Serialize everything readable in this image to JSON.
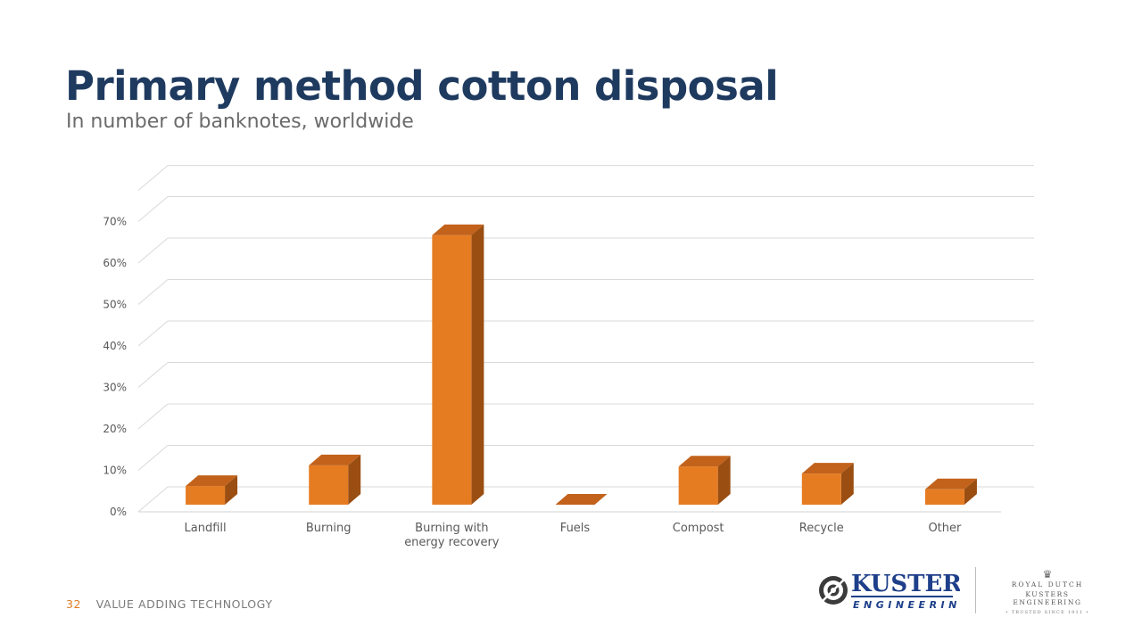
{
  "slide": {
    "title": "Primary method cotton disposal",
    "subtitle": "In number of banknotes, worldwide",
    "page_number": "32",
    "footer_text": "VALUE ADDING TECHNOLOGY"
  },
  "logo": {
    "name_top": "KUSTERS",
    "name_bottom": "ENGINEERING",
    "icon": "kusters-roll-icon",
    "badge_icon": "crown-icon",
    "badge_line1": "ROYAL DUTCH",
    "badge_line2": "KUSTERS ENGINEERING",
    "badge_line3": "• TRUSTED SINCE 1911 •",
    "brand_color": "#1e3f8a"
  },
  "chart_data": {
    "type": "bar",
    "style": "3d-column",
    "categories": [
      "Landfill",
      "Burning",
      "Burning with energy recovery",
      "Fuels",
      "Compost",
      "Recycle",
      "Other"
    ],
    "category_lines": [
      [
        "Landfill"
      ],
      [
        "Burning"
      ],
      [
        "Burning with",
        "energy recovery"
      ],
      [
        "Fuels"
      ],
      [
        "Compost"
      ],
      [
        "Recycle"
      ],
      [
        "Other"
      ]
    ],
    "values": [
      4.5,
      9.5,
      65,
      0,
      9.2,
      7.5,
      3.7
    ],
    "unit": "%",
    "ylim": [
      0,
      70
    ],
    "y_ticks": [
      0,
      10,
      20,
      30,
      40,
      50,
      60,
      70
    ],
    "y_tick_labels": [
      "0%",
      "10%",
      "20%",
      "30%",
      "40%",
      "50%",
      "60%",
      "70%"
    ],
    "grid": true,
    "legend": "none",
    "bar_color": "#e67c22",
    "bar_top_color": "#c2621b",
    "bar_side_color": "#9a4e12"
  }
}
